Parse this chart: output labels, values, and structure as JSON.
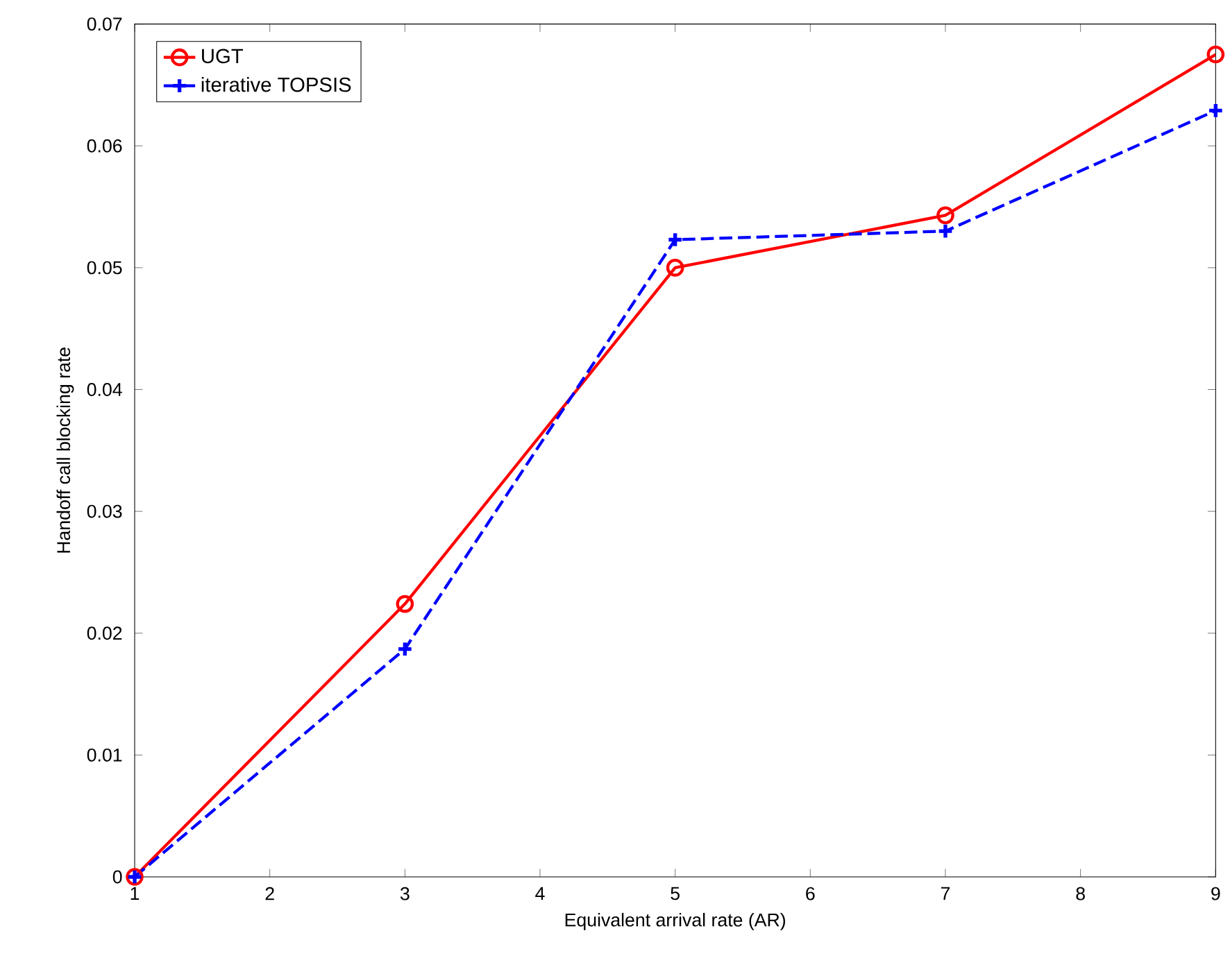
{
  "chart_data": {
    "type": "line",
    "xlabel": "Equivalent arrival rate (AR)",
    "ylabel": "Handoff call blocking rate",
    "x": [
      1,
      3,
      5,
      7,
      9
    ],
    "series": [
      {
        "name": "UGT",
        "color": "#ff0000",
        "values": [
          0,
          0.0224,
          0.05,
          0.0543,
          0.0675
        ],
        "marker": "circle",
        "line_style": "solid"
      },
      {
        "name": "iterative TOPSIS",
        "color": "#0000ff",
        "values": [
          0,
          0.0187,
          0.0523,
          0.053,
          0.0629
        ],
        "marker": "cross",
        "line_style": "dashed"
      }
    ],
    "xlim": [
      1,
      9
    ],
    "xticks": [
      1,
      2,
      3,
      4,
      5,
      6,
      7,
      8,
      9
    ],
    "ylim": [
      0,
      0.07
    ],
    "yticks": [
      0,
      0.01,
      0.02,
      0.03,
      0.04,
      0.05,
      0.06,
      0.07
    ],
    "grid": false,
    "legend": "top left"
  }
}
